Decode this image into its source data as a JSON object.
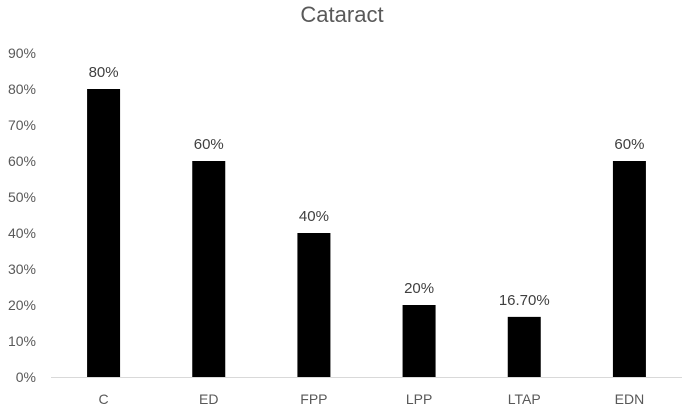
{
  "chart_data": {
    "type": "bar",
    "title": "Cataract",
    "xlabel": "",
    "ylabel": "",
    "categories": [
      "C",
      "ED",
      "FPP",
      "LPP",
      "LTAP",
      "EDN"
    ],
    "values": [
      80,
      60,
      40,
      20,
      16.7,
      60
    ],
    "data_labels": [
      "80%",
      "60%",
      "40%",
      "20%",
      "16.70%",
      "60%"
    ],
    "ylim": [
      0,
      90
    ],
    "yticks": [
      0,
      10,
      20,
      30,
      40,
      50,
      60,
      70,
      80,
      90
    ],
    "ytick_labels": [
      "0%",
      "10%",
      "20%",
      "30%",
      "40%",
      "50%",
      "60%",
      "70%",
      "80%",
      "90%"
    ],
    "grid": false,
    "legend": "none",
    "bar_color": "#000000"
  }
}
